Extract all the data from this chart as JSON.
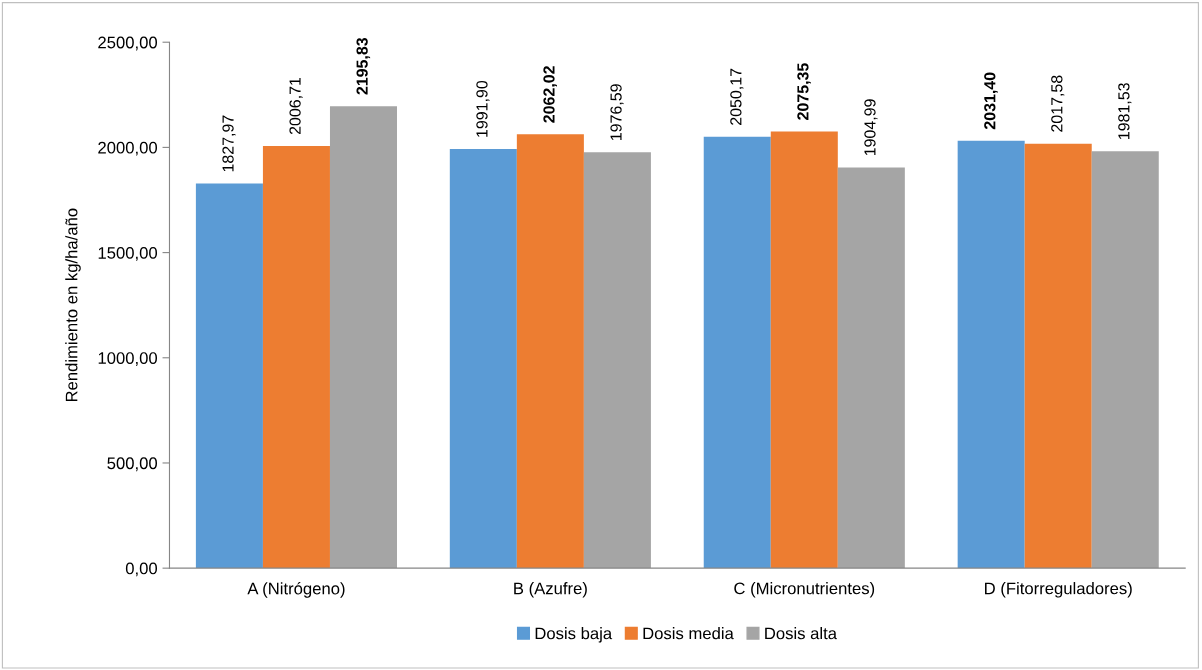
{
  "chart_data": {
    "type": "bar",
    "ylabel": "Rendimiento en kg/ha/año",
    "categories": [
      "A (Nitrógeno)",
      "B (Azufre)",
      "C (Micronutrientes)",
      "D (Fitorreguladores)"
    ],
    "series": [
      {
        "name": "Dosis baja",
        "color": "#5b9bd5",
        "values": [
          1827.97,
          1991.9,
          2050.17,
          2031.4
        ],
        "value_labels": [
          "1827,97",
          "1991,90",
          "2050,17",
          "2031,40"
        ]
      },
      {
        "name": "Dosis media",
        "color": "#ed7d31",
        "values": [
          2006.71,
          2062.02,
          2075.35,
          2017.58
        ],
        "value_labels": [
          "2006,71",
          "2062,02",
          "2075,35",
          "2017,58"
        ]
      },
      {
        "name": "Dosis alta",
        "color": "#a5a5a5",
        "values": [
          2195.83,
          1976.59,
          1904.99,
          1981.53
        ],
        "value_labels": [
          "2195,83",
          "1976,59",
          "1904,99",
          "1981,53"
        ]
      }
    ],
    "ylim": [
      0,
      2500
    ],
    "yticks": [
      {
        "value": 0,
        "label": "0,00"
      },
      {
        "value": 500,
        "label": "500,00"
      },
      {
        "value": 1000,
        "label": "1000,00"
      },
      {
        "value": 1500,
        "label": "1500,00"
      },
      {
        "value": 2000,
        "label": "2000,00"
      },
      {
        "value": 2500,
        "label": "2500,00"
      }
    ],
    "grid": false,
    "legend": "bottom"
  }
}
